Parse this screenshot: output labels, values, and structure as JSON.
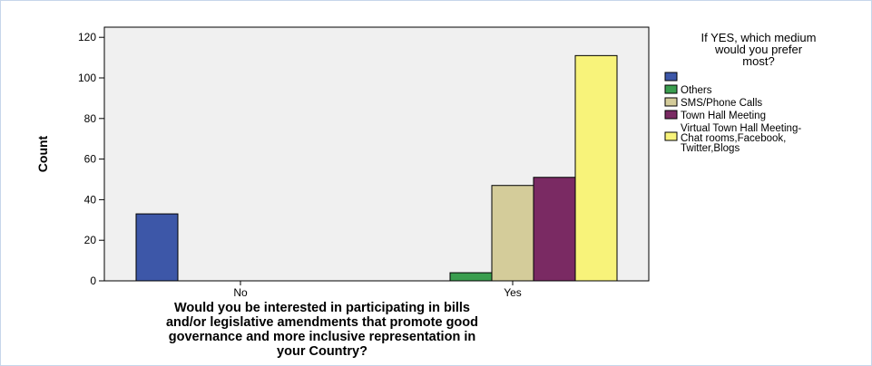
{
  "chart_data": {
    "type": "bar",
    "categories": [
      "No",
      "Yes"
    ],
    "series": [
      {
        "name": "",
        "color": "#3d57a8",
        "values": [
          33,
          0
        ]
      },
      {
        "name": "Others",
        "color": "#3a9e4f",
        "values": [
          0,
          4
        ]
      },
      {
        "name": "SMS/Phone Calls",
        "color": "#d4cc9a",
        "values": [
          0,
          47
        ]
      },
      {
        "name": "Town Hall Meeting",
        "color": "#7a2a63",
        "values": [
          0,
          51
        ]
      },
      {
        "name": "Virtual Town Hall Meeting-\nChat rooms,Facebook,\nTwitter,Blogs",
        "color": "#f8f37a",
        "values": [
          0,
          111
        ]
      }
    ],
    "ylabel": "Count",
    "xlabel": "Would you be interested in participating in bills\nand/or legislative amendments that promote good\ngovernance and more inclusive representation in\nyour Country?",
    "ylim": [
      0,
      125
    ],
    "yticks": [
      0,
      20,
      40,
      60,
      80,
      100,
      120
    ],
    "legend_title": "If YES, which medium\nwould you prefer\nmost?",
    "legend_position": "right",
    "grid": false,
    "plot_background": "#f0f0f0"
  }
}
